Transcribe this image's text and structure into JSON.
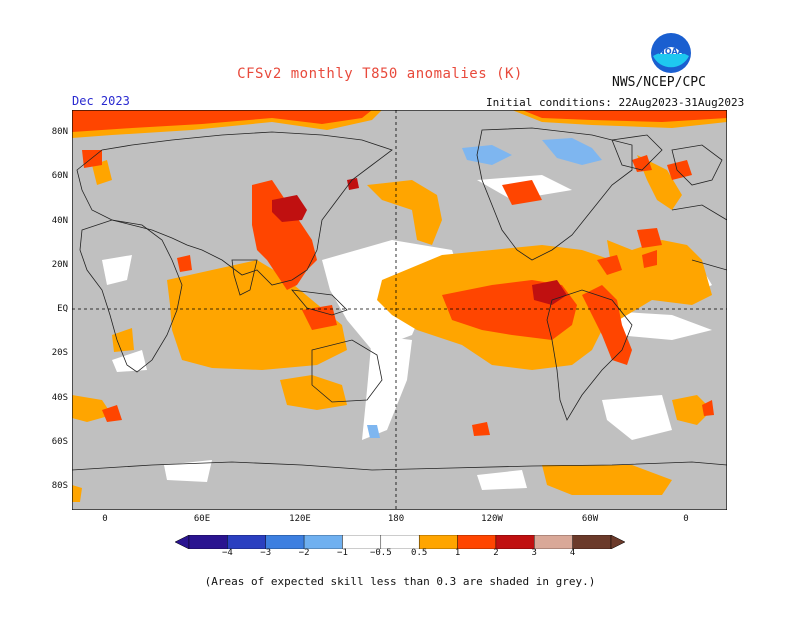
{
  "header": {
    "title": "CFSv2 monthly T850 anomalies (K)",
    "agency": "NWS/NCEP/CPC",
    "month": "Dec 2023",
    "initial_conditions": "Initial conditions: 22Aug2023-31Aug2023",
    "logo_text": "NOAA"
  },
  "axes": {
    "lat_ticks": [
      "80N",
      "60N",
      "40N",
      "20N",
      "EQ",
      "20S",
      "40S",
      "60S",
      "80S"
    ],
    "lon_ticks": [
      "0",
      "60E",
      "120E",
      "180",
      "120W",
      "60W",
      "0"
    ]
  },
  "colorbar": {
    "labels": [
      "−4",
      "−3",
      "−2",
      "−1",
      "−0.5",
      "0.5",
      "1",
      "2",
      "3",
      "4"
    ],
    "colors": [
      "#2a1490",
      "#2a3fc0",
      "#3d7fe0",
      "#6fb0f0",
      "#ffffff",
      "#ffa500",
      "#ff4500",
      "#c01010",
      "#d9a898",
      "#6b3a2a"
    ]
  },
  "footnote": "(Areas of expected skill less than 0.3 are shaded in grey.)",
  "colors": {
    "grey_low_skill": "#c0c0c0",
    "warm_05_1": "#ffa500",
    "warm_1_2": "#ff4500",
    "warm_2_3": "#c01010",
    "warm_3_4": "#8b1010",
    "cool_1_05": "#7eb6f0"
  }
}
